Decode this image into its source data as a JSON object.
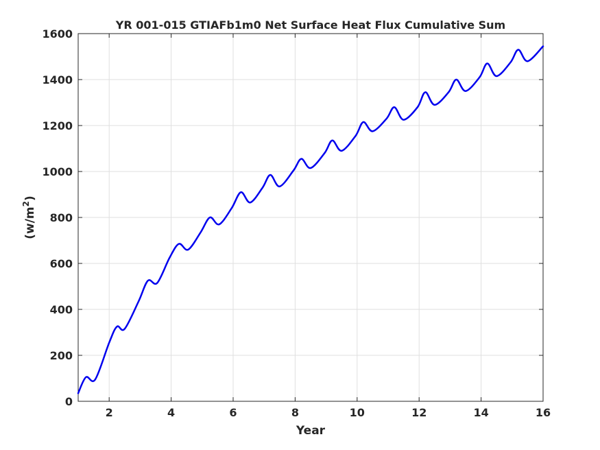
{
  "chart_data": {
    "type": "line",
    "title": "YR 001-015 GTIAFb1m0 Net Surface Heat Flux  Cumulative Sum",
    "xlabel": "Year",
    "ylabel_prefix": "(w/m",
    "ylabel_sup": "2",
    "ylabel_suffix": ")",
    "xlim": [
      1,
      16
    ],
    "ylim": [
      0,
      1600
    ],
    "xticks": [
      2,
      4,
      6,
      8,
      10,
      12,
      14,
      16
    ],
    "yticks": [
      0,
      200,
      400,
      600,
      800,
      1000,
      1200,
      1400,
      1600
    ],
    "grid": true,
    "series_color": "#0000ee",
    "series": [
      {
        "x": [
          1.0,
          1.25,
          1.55,
          2.0,
          2.25,
          2.5,
          2.95,
          3.25,
          3.55,
          3.95,
          4.25,
          4.55,
          4.95,
          5.25,
          5.55,
          5.95,
          6.25,
          6.55,
          6.95,
          7.2,
          7.5,
          7.95,
          8.2,
          8.5,
          8.95,
          9.2,
          9.5,
          9.95,
          10.2,
          10.5,
          10.95,
          11.2,
          11.5,
          11.95,
          12.2,
          12.5,
          12.95,
          13.2,
          13.5,
          13.95,
          14.2,
          14.5,
          14.95,
          15.2,
          15.5,
          16.0
        ],
        "y": [
          35,
          105,
          95,
          255,
          325,
          315,
          435,
          525,
          515,
          625,
          685,
          660,
          735,
          800,
          770,
          840,
          910,
          865,
          930,
          985,
          935,
          1005,
          1055,
          1015,
          1080,
          1135,
          1090,
          1155,
          1215,
          1175,
          1230,
          1280,
          1225,
          1280,
          1345,
          1290,
          1345,
          1400,
          1350,
          1410,
          1470,
          1415,
          1475,
          1530,
          1480,
          1545
        ]
      }
    ]
  }
}
